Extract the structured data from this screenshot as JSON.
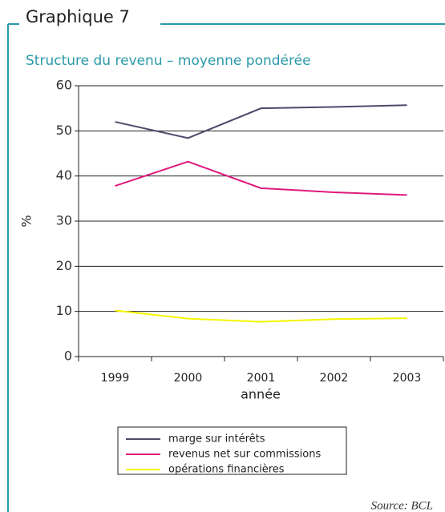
{
  "header": {
    "title": "Graphique 7"
  },
  "chart_data": {
    "type": "line",
    "title": "Structure du revenu – moyenne pondérée",
    "x_label": "année",
    "y_label": "%",
    "categories": [
      "1999",
      "2000",
      "2001",
      "2002",
      "2003"
    ],
    "series": [
      {
        "name": "marge sur intérêts",
        "color": "#4b4b6b",
        "values": [
          52,
          48.4,
          55,
          55.3,
          55.7
        ]
      },
      {
        "name": "revenus net sur commissions",
        "color": "#e0197d",
        "values": [
          37.8,
          43.2,
          37.3,
          36.4,
          35.8
        ]
      },
      {
        "name": "opérations financières",
        "color": "#f5f500",
        "values": [
          10.2,
          8.4,
          7.7,
          8.3,
          8.5
        ]
      }
    ],
    "ylim": [
      0,
      60
    ],
    "yticks": [
      0,
      10,
      20,
      30,
      40,
      50,
      60
    ],
    "grid": true,
    "source": "Source: BCL"
  }
}
